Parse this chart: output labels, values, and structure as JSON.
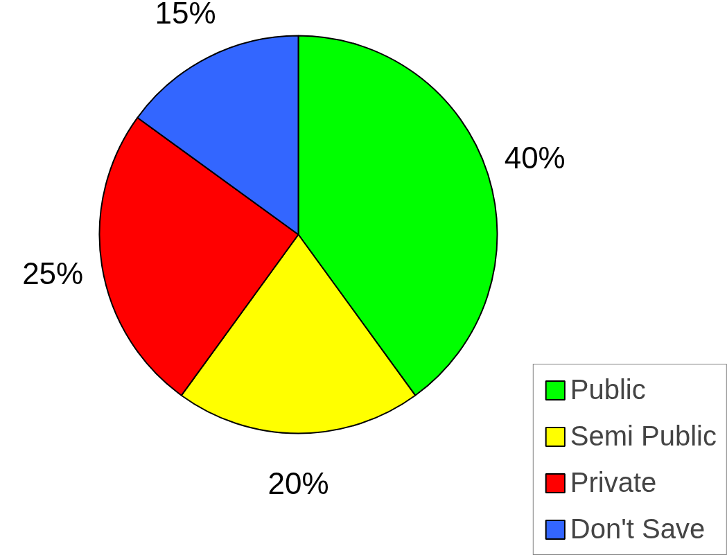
{
  "chart_data": {
    "type": "pie",
    "categories": [
      "Public",
      "Semi Public",
      "Private",
      "Don't Save"
    ],
    "values": [
      40,
      20,
      25,
      15
    ],
    "colors": [
      "#00ff00",
      "#ffff00",
      "#ff0000",
      "#3366ff"
    ],
    "value_labels": [
      "40%",
      "20%",
      "25%",
      "15%"
    ],
    "legend": "bottom right"
  }
}
